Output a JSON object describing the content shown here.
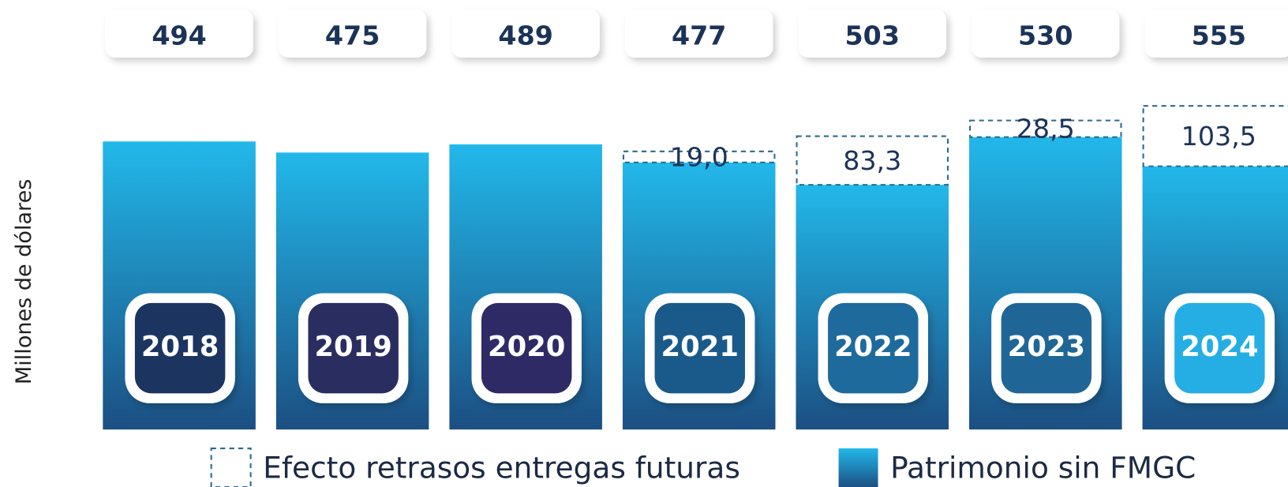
{
  "chart_data": {
    "type": "stacked-bar",
    "y_label": "Millones de dólares",
    "categories": [
      "2018",
      "2019",
      "2020",
      "2021",
      "2022",
      "2023",
      "2024"
    ],
    "totals": [
      494,
      475,
      489,
      477,
      503,
      530,
      555
    ],
    "series": [
      {
        "name": "Patrimonio sin FMGC",
        "color": "#1c4f82",
        "color_top": "#22b8ea",
        "style": "solid",
        "values": [
          494,
          475,
          489,
          458,
          419.7,
          501.5,
          451.5
        ]
      },
      {
        "name": "Efecto retrasos entregas futuras",
        "color": "#2a6b93",
        "style": "dashed",
        "values": [
          null,
          null,
          null,
          19.0,
          83.3,
          28.5,
          103.5
        ],
        "value_labels": [
          null,
          null,
          null,
          "19,0",
          "83,3",
          "28,5",
          "103,5"
        ]
      }
    ],
    "badge_colors": [
      "#1b3560",
      "#2a2d60",
      "#2d2a65",
      "#1a5a8a",
      "#1e6a9c",
      "#1f6696",
      "#25aee4"
    ],
    "ylim": [
      0,
      600
    ]
  }
}
